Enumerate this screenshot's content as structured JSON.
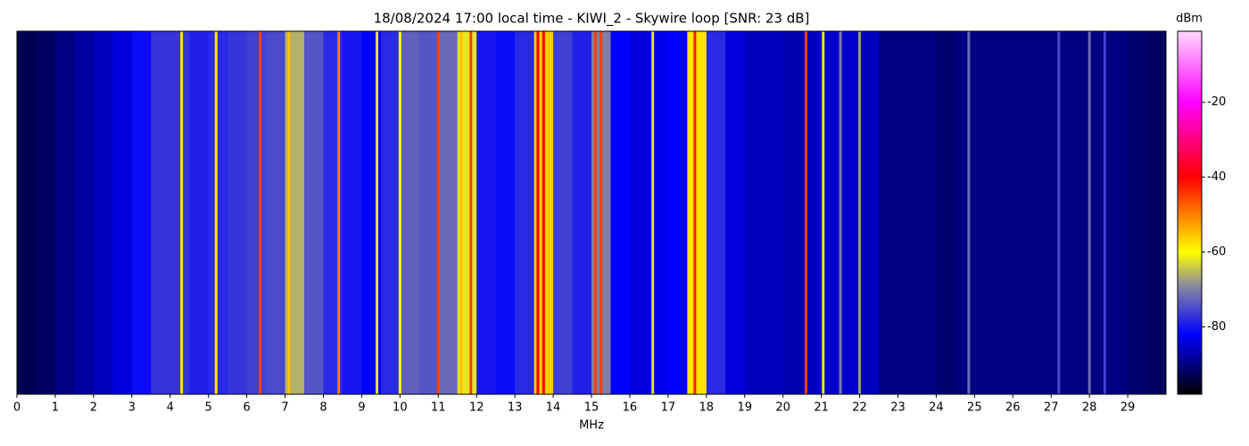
{
  "chart_data": {
    "type": "waterfall",
    "title": "18/08/2024 17:00 local time - KIWI_2 - Skywire loop [SNR: 23 dB]",
    "x_label": "MHz",
    "colorbar_label": "dBm",
    "xlim": [
      0,
      30
    ],
    "xticks": [
      0,
      1,
      2,
      3,
      4,
      5,
      6,
      7,
      8,
      9,
      10,
      11,
      12,
      13,
      14,
      15,
      16,
      17,
      18,
      19,
      20,
      21,
      22,
      23,
      24,
      25,
      26,
      27,
      28,
      29
    ],
    "clim": [
      -98,
      -1
    ],
    "cticks": [
      -80,
      -60,
      -40,
      -20
    ],
    "colorscale": [
      {
        "value": -98,
        "color": "#000000"
      },
      {
        "value": -82,
        "color": "#0000ff"
      },
      {
        "value": -69,
        "color": "#8a8aa0"
      },
      {
        "value": -60,
        "color": "#ffff00"
      },
      {
        "value": -40,
        "color": "#ff0000"
      },
      {
        "value": -20,
        "color": "#ff00ff"
      },
      {
        "value": -1,
        "color": "#ffd8ff"
      }
    ],
    "x": [
      0,
      0.5,
      1,
      1.5,
      2,
      2.5,
      3,
      3.5,
      4,
      4.5,
      5,
      5.5,
      6,
      6.5,
      7,
      7.5,
      8,
      8.5,
      9,
      9.5,
      10,
      10.5,
      11,
      11.5,
      12,
      12.5,
      13,
      13.5,
      14,
      14.5,
      15,
      15.5,
      16,
      16.5,
      17,
      17.5,
      18,
      18.5,
      19,
      19.5,
      20,
      20.5,
      21,
      21.5,
      22,
      22.5,
      23,
      23.5,
      24,
      24.5,
      25,
      25.5,
      26,
      26.5,
      27,
      27.5,
      28,
      28.5,
      29,
      29.5
    ],
    "values": [
      -93,
      -92,
      -90,
      -88,
      -86,
      -84,
      -81,
      -77,
      -77,
      -79,
      -78,
      -77,
      -76,
      -75,
      -66,
      -74,
      -78,
      -80,
      -82,
      -78,
      -73,
      -74,
      -72,
      -62,
      -80,
      -81,
      -78,
      -56,
      -76,
      -79,
      -70,
      -82,
      -84,
      -83,
      -82,
      -58,
      -78,
      -84,
      -86,
      -86,
      -87,
      -86,
      -85,
      -85,
      -86,
      -90,
      -90,
      -90,
      -91,
      -90,
      -90,
      -90,
      -90,
      -90,
      -90,
      -90,
      -90,
      -90,
      -91,
      -92
    ],
    "carriers": {
      "x": [
        4.3,
        5.2,
        6.35,
        7.1,
        8.4,
        9.4,
        10.0,
        11.0,
        11.6,
        11.85,
        13.6,
        13.75,
        15.1,
        15.25,
        16.6,
        17.7,
        20.6,
        21.05,
        21.5,
        22.0,
        24.85,
        27.2,
        28.0,
        28.4
      ],
      "values": [
        -58,
        -58,
        -45,
        -55,
        -50,
        -62,
        -60,
        -45,
        -55,
        -45,
        -40,
        -40,
        -45,
        -45,
        -62,
        -42,
        -45,
        -62,
        -70,
        -68,
        -72,
        -75,
        -72,
        -76
      ]
    }
  }
}
